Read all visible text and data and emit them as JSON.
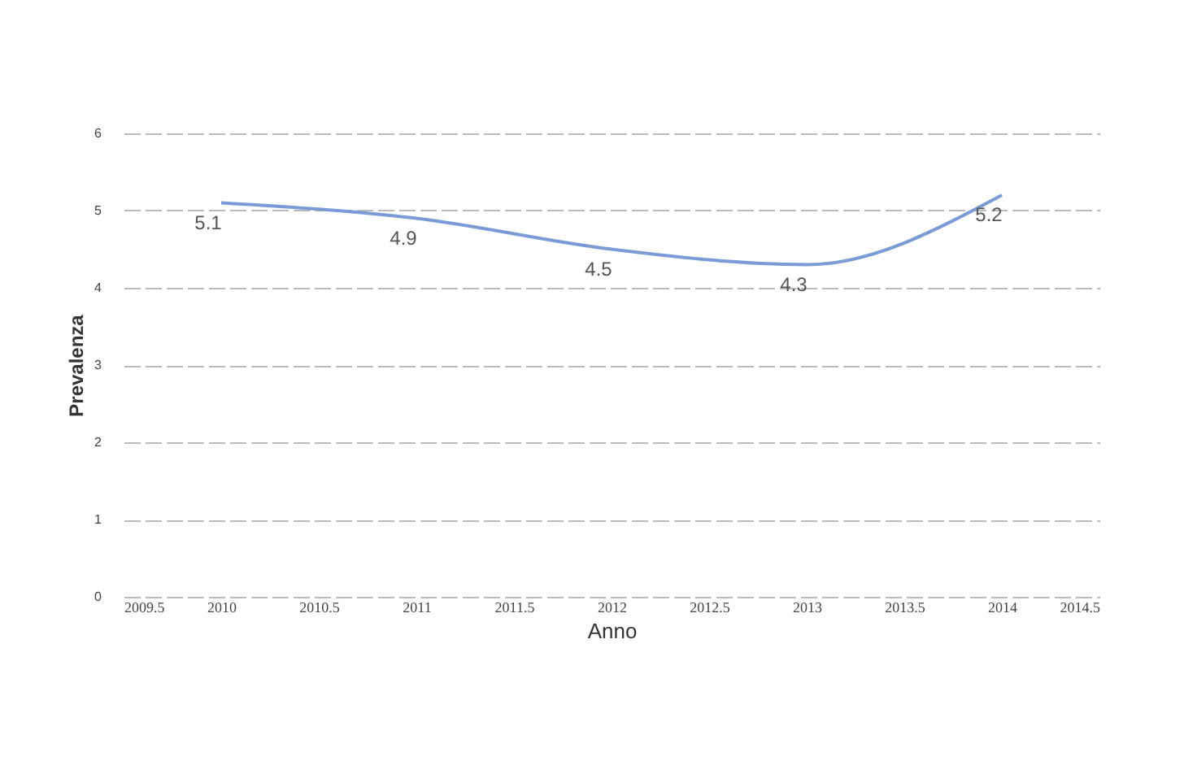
{
  "chart_data": {
    "type": "line",
    "xlabel": "Anno",
    "ylabel": "Prevalenza",
    "x": [
      2010,
      2011,
      2012,
      2013,
      2014
    ],
    "series": [
      {
        "color": "#7b9bd6",
        "values": [
          5.1,
          4.9,
          4.5,
          4.3,
          5.2
        ]
      }
    ],
    "xlim": [
      2009.5,
      2014.5
    ],
    "xticks": [
      2009.5,
      2010,
      2010.5,
      2011,
      2011.5,
      2012,
      2012.5,
      2013,
      2013.5,
      2014,
      2014.5
    ],
    "ylim": [
      0,
      6
    ],
    "yticks": [
      0,
      1,
      2,
      3,
      4,
      5,
      6
    ],
    "grid": "y",
    "data_labels": true,
    "marker": "none",
    "line_style": "solid"
  }
}
